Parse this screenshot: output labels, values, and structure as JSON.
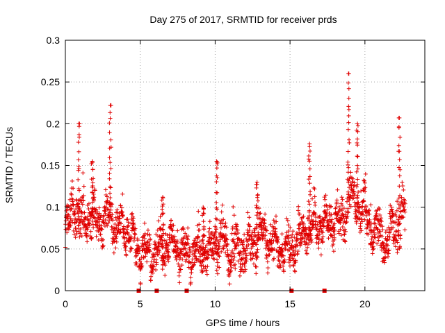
{
  "chart_data": {
    "type": "scatter",
    "title": "Day 275 of 2017, SRMTID for receiver prds",
    "xlabel": "GPS time / hours",
    "ylabel": "SRMTID / TECUs",
    "xlim": [
      0,
      24
    ],
    "ylim": [
      0,
      0.3
    ],
    "grid": true,
    "x_ticks": [
      0,
      5,
      10,
      15,
      20
    ],
    "x_tick_labels": [
      "0",
      "5",
      "10",
      "15",
      "20"
    ],
    "y_ticks": [
      0,
      0.05,
      0.1,
      0.15,
      0.2,
      0.25,
      0.3
    ],
    "y_tick_labels": [
      "0",
      "0.05",
      "0.1",
      "0.15",
      "0.2",
      "0.25",
      "0.3"
    ],
    "marker": "+",
    "series_color": "#e00000",
    "profile": {
      "x": [
        0.0,
        0.3,
        0.5,
        0.8,
        1.0,
        1.5,
        2.0,
        2.5,
        3.0,
        3.5,
        4.0,
        4.5,
        5.0,
        5.5,
        6.0,
        6.5,
        7.0,
        7.5,
        8.0,
        8.5,
        9.0,
        9.5,
        10.0,
        10.5,
        11.0,
        11.5,
        12.0,
        12.5,
        13.0,
        13.5,
        14.0,
        14.5,
        15.0,
        15.5,
        16.0,
        16.5,
        17.0,
        17.5,
        18.0,
        18.5,
        19.0,
        19.5,
        20.0,
        20.5,
        21.0,
        21.5,
        22.0,
        22.5,
        22.7
      ],
      "y": [
        0.07,
        0.09,
        0.1,
        0.09,
        0.08,
        0.09,
        0.085,
        0.08,
        0.09,
        0.075,
        0.08,
        0.06,
        0.045,
        0.045,
        0.045,
        0.05,
        0.055,
        0.05,
        0.045,
        0.045,
        0.045,
        0.045,
        0.055,
        0.06,
        0.045,
        0.05,
        0.05,
        0.055,
        0.07,
        0.06,
        0.055,
        0.05,
        0.045,
        0.06,
        0.07,
        0.075,
        0.08,
        0.08,
        0.085,
        0.08,
        0.12,
        0.1,
        0.09,
        0.075,
        0.065,
        0.06,
        0.07,
        0.09,
        0.095
      ]
    },
    "spikes": [
      {
        "x": 0.9,
        "y": 0.2
      },
      {
        "x": 1.8,
        "y": 0.155
      },
      {
        "x": 3.0,
        "y": 0.222
      },
      {
        "x": 6.5,
        "y": 0.112
      },
      {
        "x": 9.2,
        "y": 0.1
      },
      {
        "x": 10.1,
        "y": 0.155
      },
      {
        "x": 12.8,
        "y": 0.13
      },
      {
        "x": 16.3,
        "y": 0.176
      },
      {
        "x": 18.9,
        "y": 0.26
      },
      {
        "x": 19.5,
        "y": 0.2
      },
      {
        "x": 22.3,
        "y": 0.207
      }
    ],
    "gap_markers_x": [
      4.9,
      6.1,
      8.1,
      15.1,
      17.3
    ]
  }
}
